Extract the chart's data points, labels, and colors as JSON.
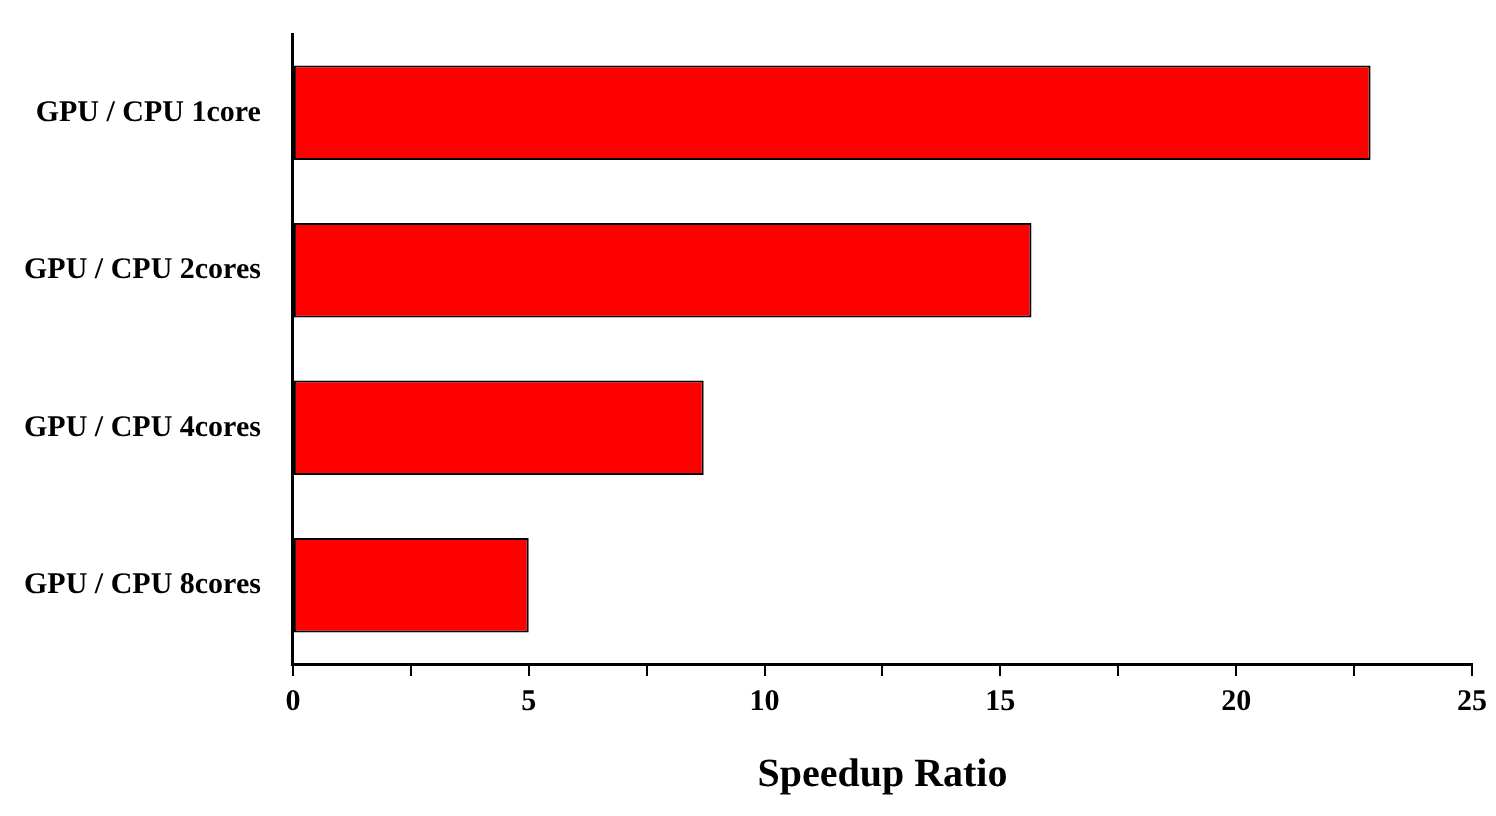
{
  "chart_data": {
    "type": "bar",
    "orientation": "horizontal",
    "categories": [
      "GPU / CPU 1core",
      "GPU / CPU 2cores",
      "GPU / CPU 4cores",
      "GPU / CPU 8cores"
    ],
    "values": [
      22.85,
      15.66,
      8.71,
      5.0
    ],
    "color": "#ff0000",
    "xlabel": "Speedup Ratio",
    "xlim": [
      0,
      25
    ],
    "xticks": [
      0,
      {
        "value": 2.5,
        "label": null
      },
      5,
      {
        "value": 7.5,
        "label": null
      },
      10,
      {
        "value": 12.5,
        "label": null
      },
      15,
      {
        "value": 17.5,
        "label": null
      },
      20,
      {
        "value": 22.5,
        "label": null
      },
      25
    ],
    "grid": false,
    "legend": false
  }
}
